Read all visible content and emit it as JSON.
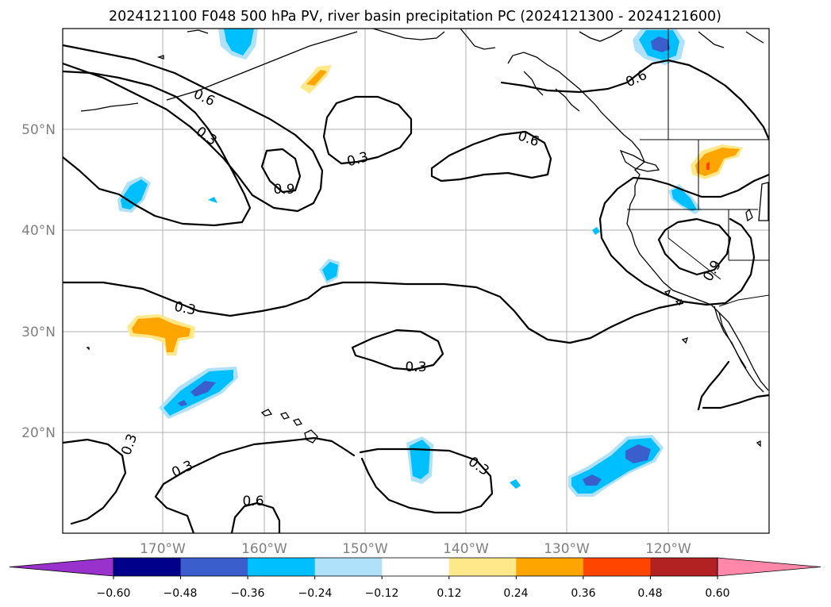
{
  "title": "2024121100 F048 500 hPa PV, river basin precipitation PC (2024121300 - 2024121600)",
  "map": {
    "lon_ticks": [
      "170°W",
      "160°W",
      "150°W",
      "140°W",
      "130°W",
      "120°W"
    ],
    "lat_ticks": [
      "50°N",
      "40°N",
      "30°N",
      "20°N"
    ],
    "grid": true,
    "contour_labels": [
      "0.6",
      "0.3",
      "0.9",
      "0.3",
      "0.6",
      "0.6",
      "0.3",
      "0.9",
      "0.3",
      "0.3",
      "0.3",
      "0.3",
      "0.6",
      "0.3"
    ]
  },
  "colorbar": {
    "ticks": [
      "−0.60",
      "−0.48",
      "−0.36",
      "−0.24",
      "−0.12",
      "0.12",
      "0.24",
      "0.36",
      "0.48",
      "0.60"
    ],
    "colors": [
      "#9932cc",
      "#00008b",
      "#3a5fcd",
      "#00bfff",
      "#afe1fa",
      "#ffffff",
      "#ffe88a",
      "#ffa500",
      "#ff4500",
      "#b22222",
      "#ff88aa"
    ]
  },
  "shading_colors": {
    "light_blue": "#afe1fa",
    "blue": "#00bfff",
    "dark_blue": "#3a5fcd",
    "light_yellow": "#ffe88a",
    "orange": "#ffa500",
    "red": "#ff4500"
  }
}
